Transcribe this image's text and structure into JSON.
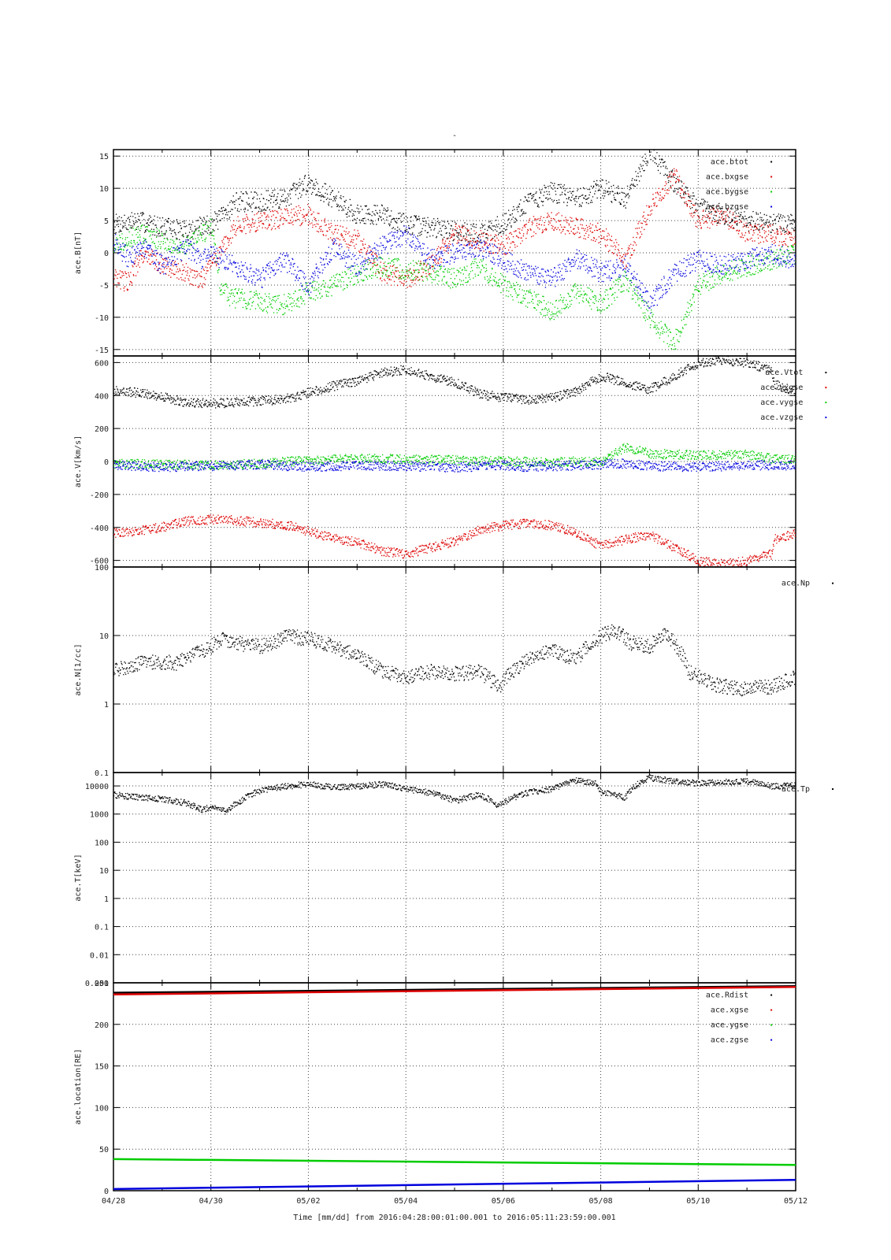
{
  "title": "-",
  "x_axis": {
    "ticks": [
      "04/28",
      "04/30",
      "05/02",
      "05/04",
      "05/06",
      "05/08",
      "05/10",
      "05/12"
    ],
    "label": "Time [mm/dd]  from 2016:04:28:00:01:00.001  to  2016:05:11:23:59:00.001",
    "range_days": [
      0,
      14
    ]
  },
  "colors": {
    "black": "#000000",
    "red": "#dd0000",
    "green": "#00cc00",
    "blue": "#0000dd"
  },
  "chart_data": [
    {
      "type": "scatter",
      "ylabel": "ace.B[nT]",
      "y_ticks": [
        "15",
        "10",
        "5",
        "0",
        "-5",
        "-10",
        "-15"
      ],
      "ylim": [
        -16,
        16
      ],
      "log": false,
      "legend_placement": "top-right",
      "x_unit": "days since 04/28",
      "series": [
        {
          "name": "ace.btot",
          "color": "#000000",
          "x": [
            0,
            0.5,
            1,
            1.5,
            2,
            2.2,
            2.5,
            3,
            3.5,
            3.8,
            4,
            4.5,
            5,
            5.5,
            6,
            6.5,
            7,
            7.5,
            8,
            8.5,
            9,
            9.5,
            10,
            10.5,
            11,
            11.5,
            12,
            12.5,
            13,
            13.5,
            14
          ],
          "y": [
            4.5,
            5,
            4,
            3.5,
            4.5,
            5.5,
            8,
            8,
            8.5,
            10,
            11,
            8.5,
            6,
            6,
            4.5,
            4,
            3.5,
            3,
            4.5,
            8,
            9.5,
            8.5,
            10,
            8.5,
            16,
            11,
            7,
            6,
            5,
            4.5,
            4.5
          ]
        },
        {
          "name": "ace.bxgse",
          "color": "#dd0000",
          "x": [
            0,
            0.3,
            0.6,
            1,
            1.5,
            1.8,
            2,
            2.5,
            3,
            3.5,
            4,
            4.5,
            5,
            5.5,
            6,
            6.5,
            7,
            7.5,
            8,
            8.5,
            9,
            9.5,
            10,
            10.5,
            11,
            11.5,
            12,
            12.5,
            13,
            13.5,
            14
          ],
          "y": [
            -4,
            -4.5,
            0,
            -2,
            -3,
            -4.5,
            -2,
            4,
            5,
            5.5,
            6,
            3,
            2,
            -3,
            -4,
            -2,
            3,
            2,
            1,
            4,
            5,
            4,
            3,
            -1,
            7,
            12,
            5,
            6,
            3,
            3,
            2
          ]
        },
        {
          "name": "ace.bygse",
          "color": "#00cc00",
          "x": [
            0,
            0.3,
            0.6,
            1,
            1.5,
            1.8,
            2,
            2.2,
            2.5,
            3,
            3.5,
            4,
            4.5,
            5,
            5.5,
            6,
            6.5,
            7,
            7.5,
            8,
            8.5,
            9,
            9.5,
            10,
            10.5,
            11,
            11.5,
            12,
            12.5,
            13,
            13.5,
            14
          ],
          "y": [
            1,
            2.5,
            3,
            2,
            1,
            3,
            4,
            -6,
            -7,
            -7.5,
            -8,
            -6,
            -5,
            -3,
            -2,
            -2.5,
            -3,
            -4,
            -2,
            -5,
            -7,
            -9,
            -6,
            -8,
            -4,
            -10,
            -14,
            -5,
            -3,
            -2,
            -1,
            0
          ]
        },
        {
          "name": "ace.bzgse",
          "color": "#0000dd",
          "x": [
            0,
            0.3,
            0.6,
            1,
            1.5,
            1.8,
            2,
            2.5,
            3,
            3.5,
            4,
            4.5,
            5,
            5.5,
            6,
            6.5,
            7,
            7.5,
            8,
            8.5,
            9,
            9.5,
            10,
            10.5,
            11,
            11.5,
            12,
            12.5,
            13,
            13.5,
            14
          ],
          "y": [
            2,
            -1,
            1,
            -2,
            1,
            -1,
            0,
            -2,
            -4,
            -1,
            -5,
            1,
            -2,
            1,
            3,
            -1,
            0,
            1,
            -1,
            -3,
            -4,
            -1,
            -3,
            -2,
            -8,
            -3,
            -1,
            -2,
            -1,
            0,
            -1
          ]
        }
      ]
    },
    {
      "type": "scatter",
      "ylabel": "ace.V[km/s]",
      "y_ticks": [
        "600",
        "400",
        "200",
        "0",
        "-200",
        "-400",
        "-600"
      ],
      "ylim": [
        -640,
        640
      ],
      "log": false,
      "legend_placement": "top-right",
      "x_unit": "days since 04/28",
      "series": [
        {
          "name": "ace.Vtot",
          "color": "#000000",
          "x": [
            0,
            0.5,
            1,
            1.5,
            2,
            2.5,
            3,
            3.5,
            4,
            4.5,
            5,
            5.5,
            6,
            6.5,
            7,
            7.2,
            7.5,
            8,
            8.5,
            9,
            9.5,
            10,
            10.5,
            11,
            11.5,
            12,
            12.5,
            13,
            13.5,
            13.55,
            14
          ],
          "y": [
            430,
            420,
            395,
            360,
            355,
            360,
            370,
            380,
            420,
            460,
            490,
            540,
            560,
            520,
            480,
            460,
            410,
            390,
            375,
            390,
            430,
            520,
            480,
            440,
            520,
            600,
            620,
            600,
            560,
            470,
            430
          ]
        },
        {
          "name": "ace.vxgse",
          "color": "#dd0000",
          "x": [
            0,
            0.5,
            1,
            1.5,
            2,
            2.5,
            3,
            3.5,
            4,
            4.5,
            5,
            5.5,
            6,
            6.5,
            7,
            7.2,
            7.5,
            8,
            8.5,
            9,
            9.5,
            10,
            10.5,
            11,
            11.5,
            12,
            12.5,
            13,
            13.5,
            13.55,
            14
          ],
          "y": [
            -430,
            -420,
            -395,
            -360,
            -350,
            -355,
            -370,
            -380,
            -420,
            -460,
            -490,
            -540,
            -560,
            -520,
            -480,
            -460,
            -410,
            -385,
            -370,
            -385,
            -430,
            -510,
            -470,
            -440,
            -520,
            -600,
            -620,
            -600,
            -560,
            -470,
            -430
          ]
        },
        {
          "name": "ace.vygse",
          "color": "#00cc00",
          "x": [
            0,
            1,
            2,
            3,
            4,
            5,
            6,
            7,
            8,
            8.5,
            9,
            9.5,
            10,
            10.5,
            11,
            12,
            13,
            13.5,
            14
          ],
          "y": [
            -10,
            -15,
            -20,
            -10,
            10,
            20,
            15,
            10,
            5,
            0,
            -5,
            5,
            0,
            90,
            50,
            40,
            45,
            20,
            15
          ]
        },
        {
          "name": "ace.vzgse",
          "color": "#0000dd",
          "x": [
            0,
            1,
            2,
            3,
            4,
            5,
            6,
            7,
            8,
            8.5,
            9,
            9.5,
            10,
            10.5,
            11,
            12,
            13,
            13.5,
            14
          ],
          "y": [
            -20,
            -30,
            -25,
            -15,
            -30,
            -20,
            -25,
            -35,
            -20,
            -30,
            -25,
            -20,
            -15,
            -10,
            -25,
            -30,
            -20,
            -20,
            -20
          ]
        }
      ]
    },
    {
      "type": "scatter",
      "ylabel": "ace.N[1/cc]",
      "y_ticks": [
        "100",
        "10",
        "1",
        "0.1"
      ],
      "ylim": [
        0.1,
        100
      ],
      "log": true,
      "legend_placement": "top-right",
      "x_unit": "days since 04/28",
      "series": [
        {
          "name": "ace.Np",
          "color": "#000000",
          "x": [
            0,
            0.5,
            1,
            1.3,
            1.6,
            2,
            2.2,
            2.5,
            3,
            3.3,
            3.5,
            4,
            4.5,
            5,
            5.5,
            6,
            6.5,
            7,
            7.5,
            7.9,
            8.4,
            8.7,
            9,
            9.5,
            10,
            10.3,
            10.6,
            11,
            11.3,
            11.5,
            11.8,
            12,
            12.3,
            12.6,
            13,
            13.5,
            14
          ],
          "y": [
            3,
            4,
            4.2,
            4,
            5,
            7,
            9,
            8,
            7,
            8,
            10,
            9,
            7,
            5,
            3,
            2.5,
            3,
            2.8,
            3,
            1.8,
            4,
            5.5,
            6,
            4.5,
            10,
            12,
            8,
            7,
            10,
            8,
            3,
            2.5,
            2,
            1.8,
            1.7,
            1.8,
            2.5
          ]
        }
      ]
    },
    {
      "type": "scatter",
      "ylabel": "ace.T[keV]",
      "y_ticks": [
        "10000",
        "1000",
        "100",
        "10",
        "1",
        "0.1",
        "0.01",
        "0.001"
      ],
      "ylim": [
        0.001,
        30000
      ],
      "log": true,
      "legend_placement": "top-right",
      "x_unit": "days since 04/28",
      "series": [
        {
          "name": "ace.Tp",
          "color": "#000000",
          "x": [
            0,
            0.5,
            1,
            1.5,
            1.8,
            2,
            2.3,
            2.6,
            3,
            3.5,
            4,
            4.5,
            5,
            5.5,
            6,
            6.5,
            7,
            7.5,
            7.9,
            8.5,
            9,
            9.5,
            9.9,
            10,
            10.5,
            11,
            11.5,
            12,
            12.5,
            13,
            13.5,
            14
          ],
          "y": [
            5000,
            4000,
            3500,
            2500,
            1500,
            1800,
            1300,
            3000,
            7000,
            10000,
            12000,
            9000,
            10000,
            12000,
            8000,
            6000,
            3000,
            5000,
            2000,
            6000,
            8000,
            16000,
            12000,
            6000,
            4000,
            20000,
            15000,
            13000,
            14000,
            15000,
            10000,
            11000
          ]
        }
      ]
    },
    {
      "type": "line",
      "ylabel": "ace.location[RE]",
      "y_ticks": [
        "250",
        "200",
        "150",
        "100",
        "50",
        "0"
      ],
      "ylim": [
        0,
        250
      ],
      "log": false,
      "legend_placement": "top-right",
      "x_unit": "days since 04/28",
      "series": [
        {
          "name": "ace.Rdist",
          "color": "#000000",
          "x": [
            0,
            14
          ],
          "y": [
            238,
            246
          ]
        },
        {
          "name": "ace.xgse",
          "color": "#dd0000",
          "x": [
            0,
            14
          ],
          "y": [
            236,
            245
          ]
        },
        {
          "name": "ace.ygse",
          "color": "#00cc00",
          "x": [
            0,
            14
          ],
          "y": [
            38,
            31
          ]
        },
        {
          "name": "ace.zgse",
          "color": "#0000dd",
          "x": [
            0,
            14
          ],
          "y": [
            2,
            13
          ]
        }
      ]
    }
  ]
}
